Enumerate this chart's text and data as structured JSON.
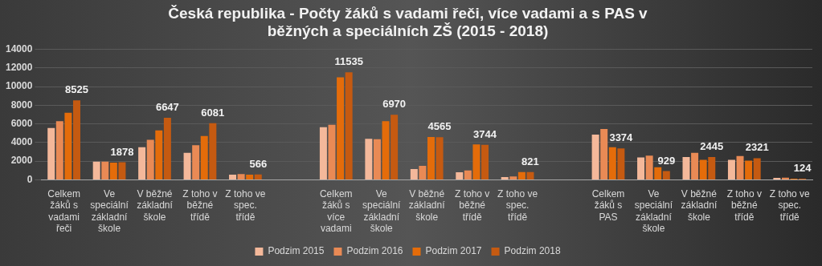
{
  "chart_data": {
    "type": "bar",
    "title": "Česká republika - Počty žáků s vadami řeči, více vadami a s PAS v běžných a speciálních ZŠ (2015 - 2018)",
    "categories": [
      "Celkem žáků s vadami řeči",
      "Ve speciální základní škole",
      "V běžné základní škole",
      "Z toho v běžné třídě",
      "Z toho ve spec. třídě",
      null,
      "Celkem žáků s více vadami",
      "Ve speciální základní škole",
      "V běžné základní škole",
      "Z toho v běžné třídě",
      "Z toho ve spec. třídě",
      null,
      "Celkem žáků s PAS",
      "Ve speciální základní škole",
      "V běžné základní škole",
      "Z toho v běžné třídě",
      "Z toho ve spec. třídě"
    ],
    "series": [
      {
        "name": "Podzim 2015",
        "color": "#f4b89a",
        "values": [
          5550,
          1950,
          3500,
          2900,
          550,
          null,
          5650,
          4400,
          1150,
          800,
          300,
          null,
          4850,
          2400,
          2450,
          2150,
          200
        ]
      },
      {
        "name": "Podzim 2016",
        "color": "#e98a55",
        "values": [
          6300,
          1950,
          4300,
          3700,
          620,
          null,
          5900,
          4350,
          1500,
          1000,
          350,
          null,
          5450,
          2600,
          2900,
          2550,
          230
        ]
      },
      {
        "name": "Podzim 2017",
        "color": "#e46c0a",
        "values": [
          7200,
          1850,
          5300,
          4700,
          550,
          null,
          11000,
          6300,
          4600,
          3800,
          830,
          null,
          3500,
          1350,
          2150,
          2050,
          130
        ]
      },
      {
        "name": "Podzim 2018",
        "color": "#c55a11",
        "values": [
          8525,
          1878,
          6647,
          6081,
          566,
          null,
          11535,
          6970,
          4565,
          3744,
          821,
          null,
          3374,
          929,
          2445,
          2321,
          124
        ],
        "value_labels": [
          "8525",
          "1878",
          "6647",
          "6081",
          "566",
          null,
          "11535",
          "6970",
          "4565",
          "3744",
          "821",
          null,
          "3374",
          "929",
          "2445",
          "2321",
          "124"
        ]
      }
    ],
    "ylim": [
      0,
      14000
    ],
    "yticks": [
      0,
      2000,
      4000,
      6000,
      8000,
      10000,
      12000,
      14000
    ],
    "grid": "y",
    "legend": "bottom"
  }
}
